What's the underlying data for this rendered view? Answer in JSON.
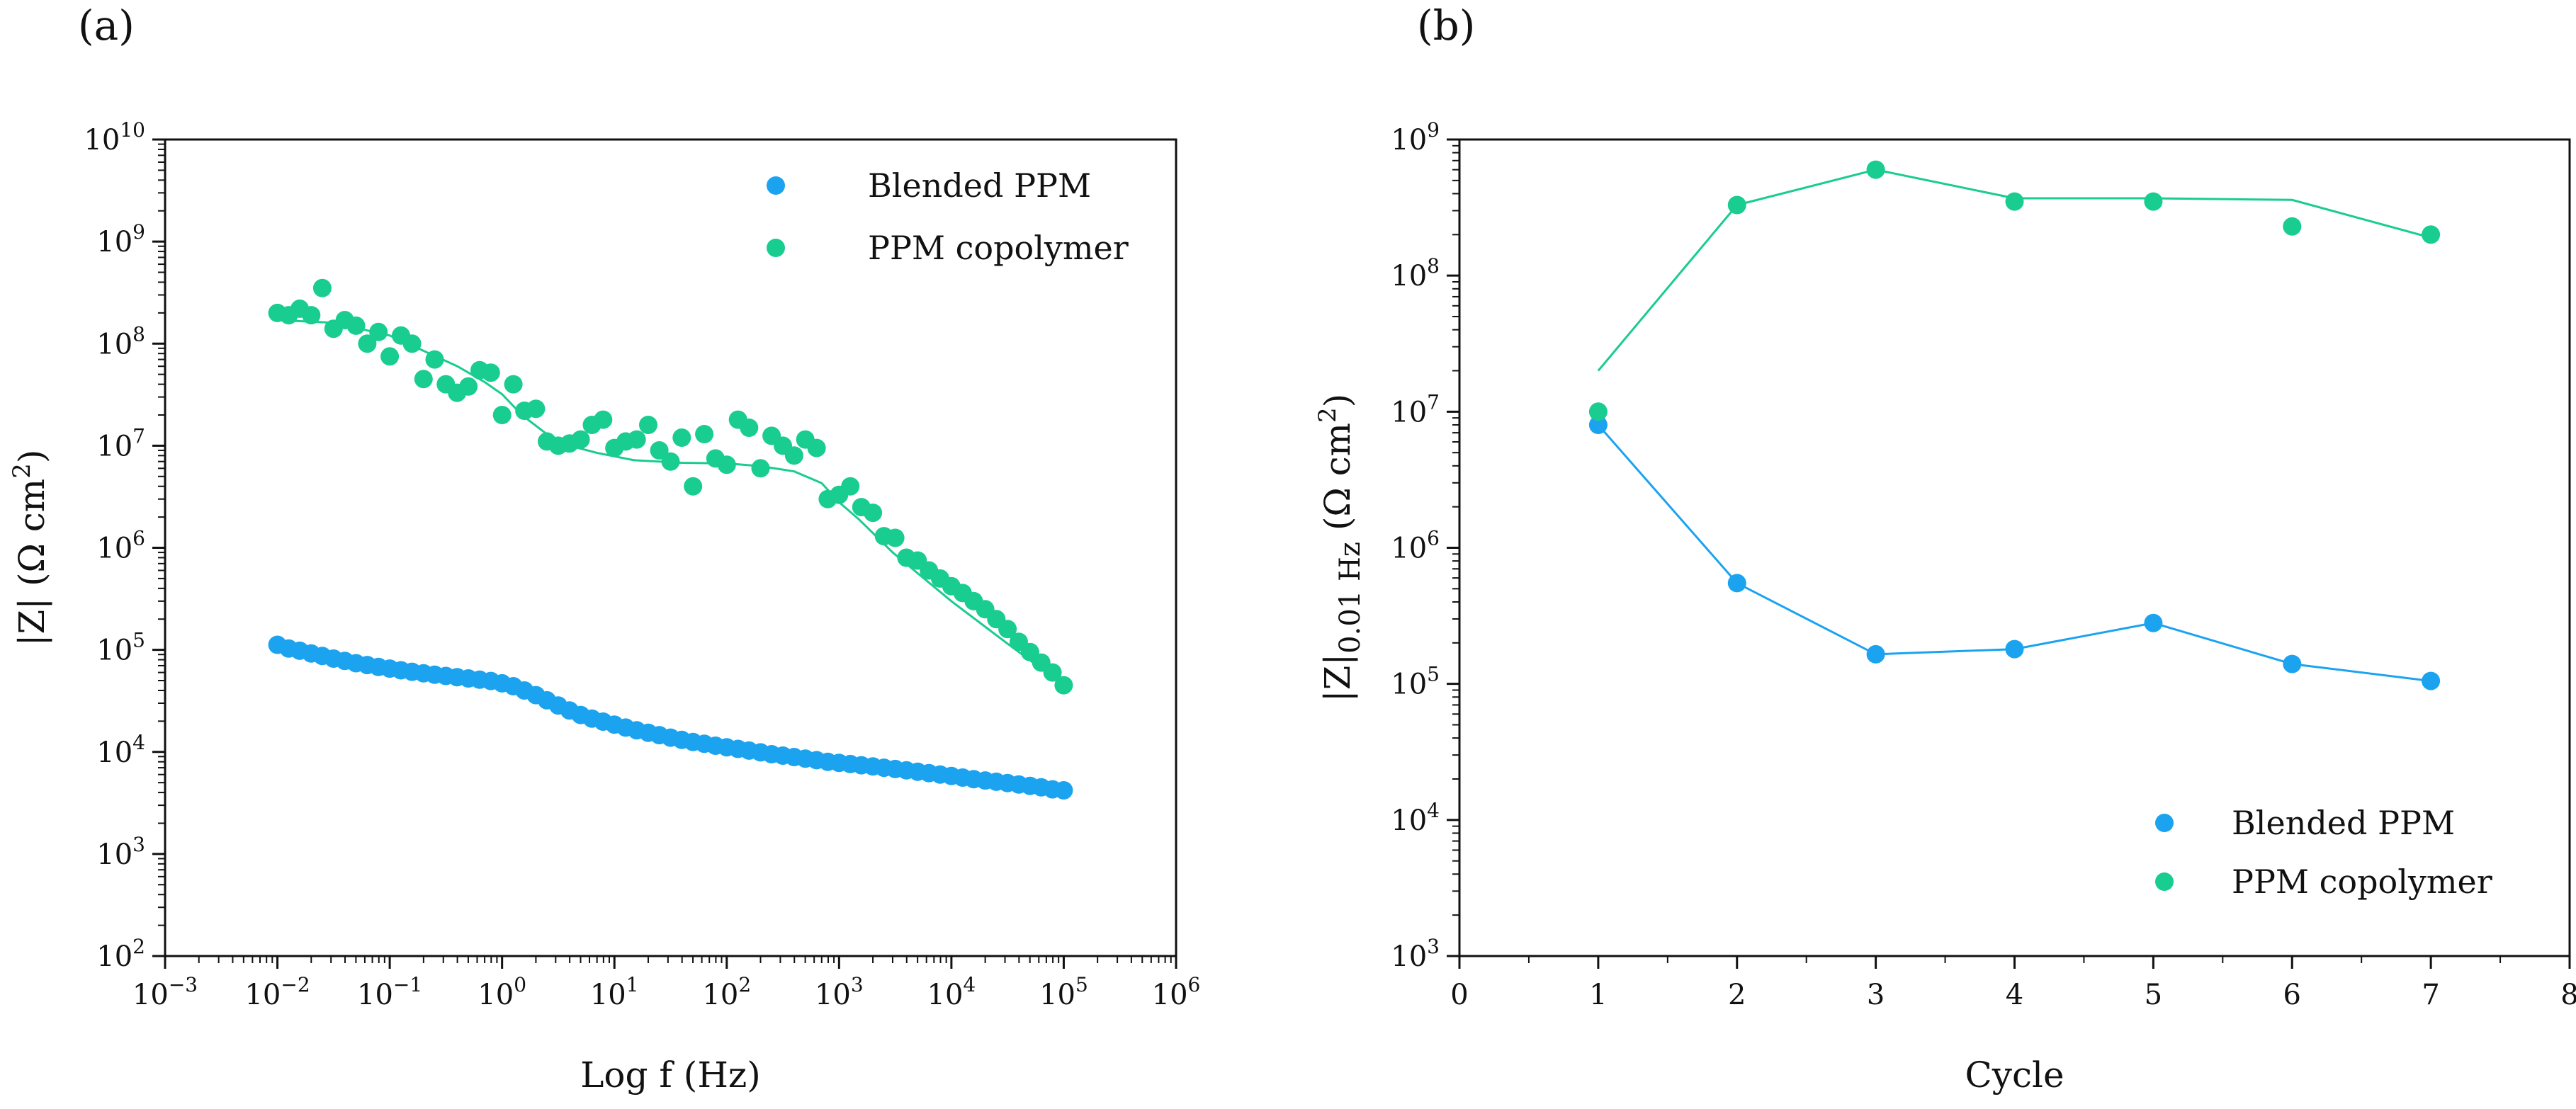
{
  "colors": {
    "blended": "#1ba3f0",
    "copolymer": "#19cc8f",
    "axis": "#111111"
  },
  "chart_data": [
    {
      "panel_label": "(a)",
      "type": "scatter",
      "xscale": "log",
      "yscale": "log",
      "xlabel": "Log f (Hz)",
      "ylabel": "|Z| (Ω cm²)",
      "ylabel_parts": {
        "main": "|Z|  (Ω cm",
        "sup": "2",
        "end": ")"
      },
      "xlim_exp": [
        -3,
        6
      ],
      "ylim_exp": [
        2,
        10
      ],
      "xtick_exps": [
        -3,
        -2,
        -1,
        0,
        1,
        2,
        3,
        4,
        5,
        6
      ],
      "ytick_exps": [
        2,
        3,
        4,
        5,
        6,
        7,
        8,
        9,
        10
      ],
      "tick_base": "10",
      "legend": {
        "position": "top-right",
        "entries": [
          "Blended PPM",
          "PPM copolymer"
        ]
      },
      "series": [
        {
          "name": "Blended PPM",
          "color": "#1ba3f0",
          "x": [
            0.01,
            0.0126,
            0.0158,
            0.02,
            0.0251,
            0.0316,
            0.0398,
            0.0501,
            0.0631,
            0.0794,
            0.1,
            0.126,
            0.158,
            0.2,
            0.251,
            0.316,
            0.398,
            0.501,
            0.631,
            0.794,
            1,
            1.26,
            1.58,
            2,
            2.51,
            3.16,
            3.98,
            5.01,
            6.31,
            7.94,
            10,
            12.6,
            15.8,
            20,
            25.1,
            31.6,
            39.8,
            50.1,
            63.1,
            79.4,
            100,
            126,
            158,
            200,
            251,
            316,
            398,
            501,
            631,
            794,
            1000,
            1260,
            1580,
            2000,
            2510,
            3160,
            3980,
            5010,
            6310,
            7940,
            10000,
            12600,
            15800,
            20000,
            25100,
            31600,
            39800,
            50100,
            63100,
            79400,
            100000
          ],
          "y": [
            112000,
            103000,
            98000,
            92000,
            87000,
            82000,
            78000,
            74000,
            71000,
            68000,
            65500,
            63000,
            61000,
            59000,
            57000,
            55500,
            54000,
            52500,
            51000,
            49500,
            47000,
            44000,
            40000,
            36000,
            32000,
            28500,
            25500,
            23000,
            21200,
            19800,
            18500,
            17300,
            16300,
            15400,
            14600,
            13800,
            13100,
            12500,
            12000,
            11500,
            11100,
            10700,
            10300,
            9900,
            9500,
            9200,
            8900,
            8600,
            8300,
            8000,
            7800,
            7600,
            7400,
            7200,
            7000,
            6800,
            6600,
            6400,
            6200,
            6000,
            5800,
            5600,
            5400,
            5250,
            5100,
            4950,
            4800,
            4650,
            4500,
            4300,
            4200
          ]
        },
        {
          "name": "PPM copolymer",
          "color": "#19cc8f",
          "x": [
            0.01,
            0.0126,
            0.0158,
            0.02,
            0.0251,
            0.0316,
            0.0398,
            0.0501,
            0.0631,
            0.0794,
            0.1,
            0.126,
            0.158,
            0.2,
            0.251,
            0.316,
            0.398,
            0.501,
            0.631,
            0.794,
            1,
            1.26,
            1.58,
            2,
            2.51,
            3.16,
            3.98,
            5.01,
            6.31,
            7.94,
            10,
            12.6,
            15.8,
            20,
            25.1,
            31.6,
            39.8,
            50.1,
            63.1,
            79.4,
            100,
            126,
            158,
            200,
            251,
            316,
            398,
            501,
            631,
            794,
            1000,
            1260,
            1580,
            2000,
            2510,
            3160,
            3980,
            5010,
            6310,
            7940,
            10000,
            12600,
            15800,
            20000,
            25100,
            31600,
            39800,
            50100,
            63100,
            79400,
            100000
          ],
          "y": [
            200000000,
            190000000,
            220000000,
            190000000,
            350000000,
            140000000,
            170000000,
            150000000,
            100000000,
            130000000,
            75000000,
            120000000,
            100000000,
            45000000,
            70000000,
            40000000,
            33000000,
            38000000,
            55000000,
            52000000,
            20000000,
            40000000,
            22000000,
            23000000,
            11000000,
            10000000,
            10500000,
            11500000,
            16000000,
            18000000,
            9500000,
            11000000,
            11500000,
            16000000,
            9000000,
            7000000,
            12000000,
            4000000,
            13000000,
            7500000,
            6500000,
            18000000,
            15000000,
            6000000,
            12500000,
            10000000,
            8000000,
            11500000,
            9500000,
            3000000,
            3300000,
            4000000,
            2500000,
            2200000,
            1300000,
            1250000,
            800000,
            750000,
            600000,
            500000,
            420000,
            360000,
            300000,
            250000,
            200000,
            160000,
            120000,
            95000,
            75000,
            60000,
            45000
          ]
        }
      ],
      "fit_lines": [
        {
          "name": "PPM copolymer fit",
          "color": "#19cc8f",
          "x": [
            0.01,
            0.0316,
            0.1,
            0.2,
            0.4,
            0.7,
            1,
            1.5,
            2.5,
            4,
            7,
            15,
            40,
            100,
            200,
            400,
            700,
            1000,
            1500,
            3000,
            10000,
            30000,
            100000
          ],
          "y": [
            170000000,
            160000000,
            120000000,
            85000000,
            60000000,
            42000000,
            32000000,
            20000000,
            13000000,
            10000000,
            8500000,
            7200000,
            6800000,
            6700000,
            6300000,
            5600000,
            4300000,
            2800000,
            1900000,
            900000,
            300000,
            120000,
            45000
          ]
        }
      ]
    },
    {
      "panel_label": "(b)",
      "type": "line",
      "xscale": "linear",
      "yscale": "log",
      "xlabel": "Cycle",
      "ylabel": "|Z|0.01 Hz (Ω cm²)",
      "ylabel_parts": {
        "main": "|Z|",
        "sub": "0.01 Hz",
        "unit": " (Ω cm",
        "sup": "2",
        "end": ")"
      },
      "xlim": [
        0,
        8
      ],
      "ylim_exp": [
        3,
        9
      ],
      "xticks": [
        0,
        1,
        2,
        3,
        4,
        5,
        6,
        7,
        8
      ],
      "ytick_exps": [
        3,
        4,
        5,
        6,
        7,
        8,
        9
      ],
      "tick_base": "10",
      "legend": {
        "position": "bottom-right",
        "entries": [
          "Blended PPM",
          "PPM copolymer"
        ]
      },
      "series": [
        {
          "name": "Blended PPM",
          "color": "#1ba3f0",
          "x": [
            1,
            2,
            3,
            4,
            5,
            6,
            7
          ],
          "y": [
            8000000,
            550000,
            165000,
            180000,
            280000,
            140000,
            105000
          ],
          "line_x": [
            1,
            2,
            3,
            4,
            5,
            6,
            7
          ],
          "line_y": [
            8000000,
            550000,
            165000,
            180000,
            280000,
            140000,
            105000
          ]
        },
        {
          "name": "PPM copolymer",
          "color": "#19cc8f",
          "x": [
            1,
            2,
            3,
            4,
            5,
            6,
            7
          ],
          "y": [
            10000000,
            330000000,
            600000000,
            350000000,
            350000000,
            230000000,
            200000000
          ],
          "line_x": [
            1,
            2,
            3,
            4,
            5,
            6,
            7
          ],
          "line_y": [
            20000000,
            330000000,
            600000000,
            370000000,
            370000000,
            360000000,
            190000000
          ]
        }
      ]
    }
  ]
}
